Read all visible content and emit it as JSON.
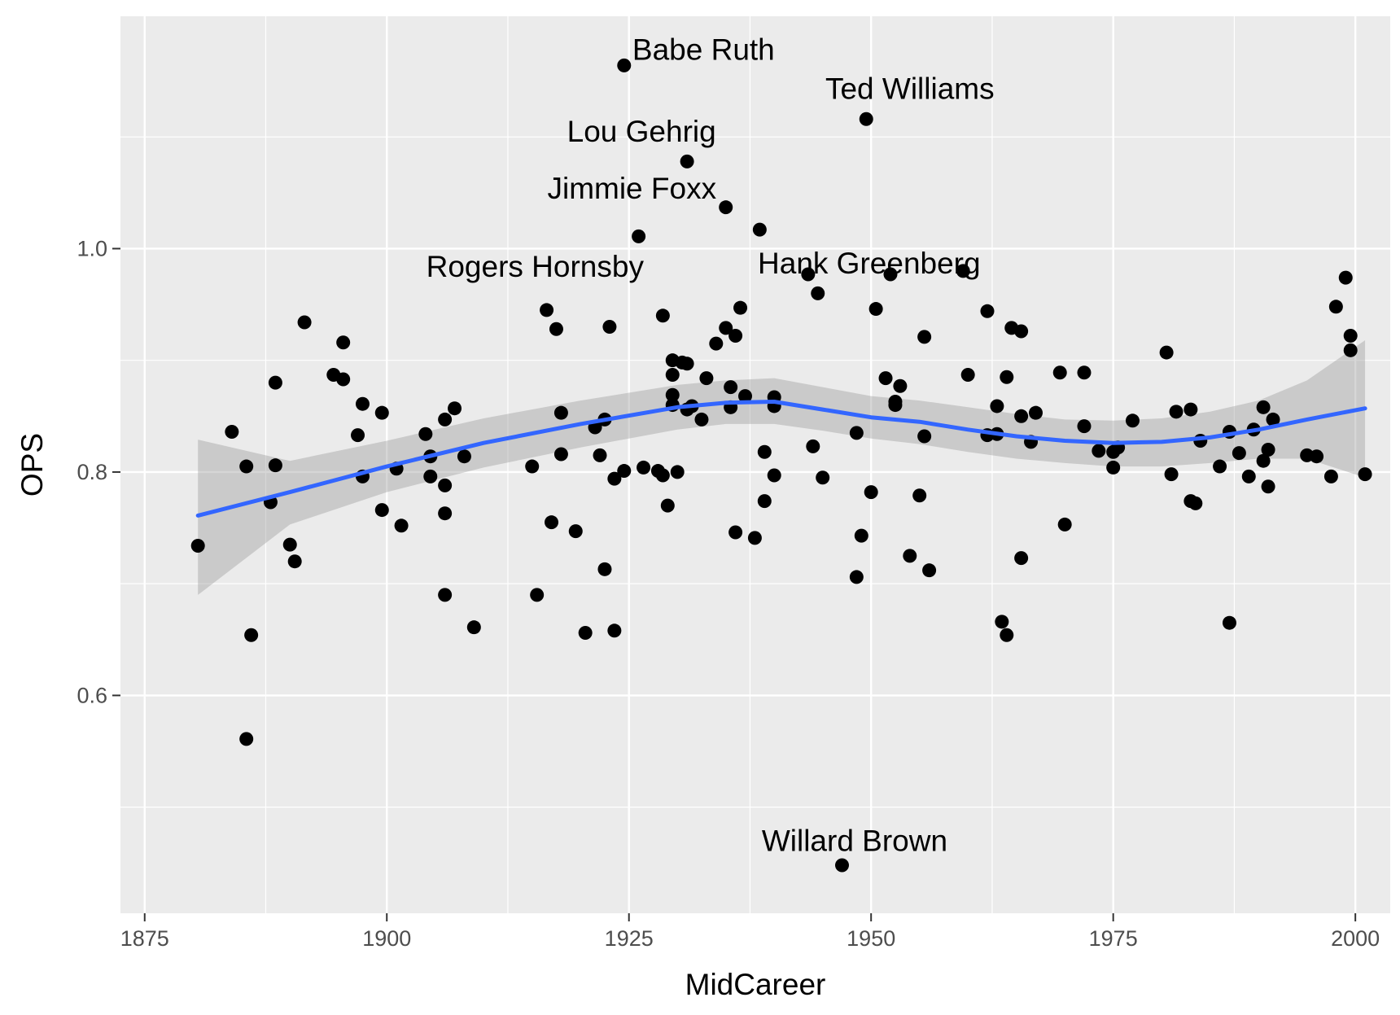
{
  "chart_data": {
    "type": "scatter",
    "title": "",
    "xlabel": "MidCareer",
    "ylabel": "OPS",
    "xlim": [
      1872.5,
      2003.6
    ],
    "ylim": [
      0.405,
      1.208
    ],
    "x_ticks": [
      1875,
      1900,
      1925,
      1950,
      1975,
      2000
    ],
    "y_ticks": [
      0.6,
      0.8,
      1.0
    ],
    "grid": true,
    "legend": "none",
    "colors": {
      "panel": "#ebebeb",
      "grid_major": "#ffffff",
      "point": "#000000",
      "smooth_line": "#3366ff",
      "ribbon": "#999999"
    },
    "points": [
      {
        "x": 1880.5,
        "y": 0.734
      },
      {
        "x": 1884.0,
        "y": 0.836
      },
      {
        "x": 1885.5,
        "y": 0.805
      },
      {
        "x": 1885.5,
        "y": 0.561
      },
      {
        "x": 1886.0,
        "y": 0.654
      },
      {
        "x": 1888.0,
        "y": 0.773
      },
      {
        "x": 1888.5,
        "y": 0.806
      },
      {
        "x": 1888.5,
        "y": 0.88
      },
      {
        "x": 1890.0,
        "y": 0.735
      },
      {
        "x": 1890.5,
        "y": 0.72
      },
      {
        "x": 1891.5,
        "y": 0.934
      },
      {
        "x": 1894.5,
        "y": 0.887
      },
      {
        "x": 1895.5,
        "y": 0.916
      },
      {
        "x": 1895.5,
        "y": 0.883
      },
      {
        "x": 1897.0,
        "y": 0.833
      },
      {
        "x": 1897.5,
        "y": 0.861
      },
      {
        "x": 1897.5,
        "y": 0.796
      },
      {
        "x": 1899.5,
        "y": 0.853
      },
      {
        "x": 1899.5,
        "y": 0.766
      },
      {
        "x": 1901.0,
        "y": 0.803
      },
      {
        "x": 1901.5,
        "y": 0.752
      },
      {
        "x": 1904.0,
        "y": 0.834
      },
      {
        "x": 1904.5,
        "y": 0.814
      },
      {
        "x": 1904.5,
        "y": 0.796
      },
      {
        "x": 1906.0,
        "y": 0.847
      },
      {
        "x": 1906.0,
        "y": 0.788
      },
      {
        "x": 1906.0,
        "y": 0.763
      },
      {
        "x": 1906.0,
        "y": 0.69
      },
      {
        "x": 1907.0,
        "y": 0.857
      },
      {
        "x": 1908.0,
        "y": 0.814
      },
      {
        "x": 1909.0,
        "y": 0.661
      },
      {
        "x": 1915.0,
        "y": 0.805
      },
      {
        "x": 1915.5,
        "y": 0.69
      },
      {
        "x": 1916.5,
        "y": 0.945
      },
      {
        "x": 1917.0,
        "y": 0.755
      },
      {
        "x": 1917.5,
        "y": 0.928
      },
      {
        "x": 1918.0,
        "y": 0.853
      },
      {
        "x": 1918.0,
        "y": 0.816
      },
      {
        "x": 1919.5,
        "y": 0.747
      },
      {
        "x": 1920.5,
        "y": 0.656
      },
      {
        "x": 1921.5,
        "y": 0.84
      },
      {
        "x": 1922.0,
        "y": 0.815
      },
      {
        "x": 1922.5,
        "y": 0.847
      },
      {
        "x": 1922.5,
        "y": 0.713
      },
      {
        "x": 1923.0,
        "y": 0.93
      },
      {
        "x": 1923.5,
        "y": 0.794
      },
      {
        "x": 1923.5,
        "y": 0.658
      },
      {
        "x": 1924.5,
        "y": 0.801
      },
      {
        "x": 1924.5,
        "y": 1.164
      },
      {
        "x": 1926.0,
        "y": 1.011
      },
      {
        "x": 1926.5,
        "y": 0.804
      },
      {
        "x": 1928.0,
        "y": 0.801
      },
      {
        "x": 1928.5,
        "y": 0.797
      },
      {
        "x": 1928.5,
        "y": 0.94
      },
      {
        "x": 1929.0,
        "y": 0.77
      },
      {
        "x": 1929.5,
        "y": 0.9
      },
      {
        "x": 1929.5,
        "y": 0.887
      },
      {
        "x": 1929.5,
        "y": 0.869
      },
      {
        "x": 1929.5,
        "y": 0.86
      },
      {
        "x": 1930.0,
        "y": 0.8
      },
      {
        "x": 1930.5,
        "y": 0.898
      },
      {
        "x": 1931.0,
        "y": 0.897
      },
      {
        "x": 1931.0,
        "y": 0.856
      },
      {
        "x": 1931.0,
        "y": 1.078
      },
      {
        "x": 1931.5,
        "y": 0.859
      },
      {
        "x": 1932.5,
        "y": 0.847
      },
      {
        "x": 1933.0,
        "y": 0.884
      },
      {
        "x": 1934.0,
        "y": 0.915
      },
      {
        "x": 1935.0,
        "y": 0.929
      },
      {
        "x": 1935.0,
        "y": 1.037
      },
      {
        "x": 1935.5,
        "y": 0.876
      },
      {
        "x": 1935.5,
        "y": 0.858
      },
      {
        "x": 1936.0,
        "y": 0.922
      },
      {
        "x": 1936.0,
        "y": 0.746
      },
      {
        "x": 1936.5,
        "y": 0.947
      },
      {
        "x": 1937.0,
        "y": 0.868
      },
      {
        "x": 1938.0,
        "y": 0.741
      },
      {
        "x": 1938.5,
        "y": 1.017
      },
      {
        "x": 1939.0,
        "y": 0.818
      },
      {
        "x": 1939.0,
        "y": 0.774
      },
      {
        "x": 1940.0,
        "y": 0.867
      },
      {
        "x": 1940.0,
        "y": 0.859
      },
      {
        "x": 1940.0,
        "y": 0.797
      },
      {
        "x": 1943.5,
        "y": 0.977
      },
      {
        "x": 1944.0,
        "y": 0.823
      },
      {
        "x": 1944.5,
        "y": 0.96
      },
      {
        "x": 1945.0,
        "y": 0.795
      },
      {
        "x": 1947.0,
        "y": 0.448
      },
      {
        "x": 1948.5,
        "y": 0.835
      },
      {
        "x": 1948.5,
        "y": 0.706
      },
      {
        "x": 1949.0,
        "y": 0.743
      },
      {
        "x": 1949.5,
        "y": 1.116
      },
      {
        "x": 1950.0,
        "y": 0.782
      },
      {
        "x": 1950.5,
        "y": 0.946
      },
      {
        "x": 1951.5,
        "y": 0.884
      },
      {
        "x": 1952.0,
        "y": 0.977
      },
      {
        "x": 1952.5,
        "y": 0.863
      },
      {
        "x": 1952.5,
        "y": 0.86
      },
      {
        "x": 1953.0,
        "y": 0.877
      },
      {
        "x": 1954.0,
        "y": 0.725
      },
      {
        "x": 1955.0,
        "y": 0.779
      },
      {
        "x": 1955.5,
        "y": 0.921
      },
      {
        "x": 1955.5,
        "y": 0.832
      },
      {
        "x": 1956.0,
        "y": 0.712
      },
      {
        "x": 1959.5,
        "y": 0.98
      },
      {
        "x": 1960.0,
        "y": 0.887
      },
      {
        "x": 1962.0,
        "y": 0.944
      },
      {
        "x": 1962.0,
        "y": 0.833
      },
      {
        "x": 1963.0,
        "y": 0.859
      },
      {
        "x": 1963.0,
        "y": 0.834
      },
      {
        "x": 1963.5,
        "y": 0.666
      },
      {
        "x": 1964.0,
        "y": 0.885
      },
      {
        "x": 1964.0,
        "y": 0.654
      },
      {
        "x": 1964.5,
        "y": 0.929
      },
      {
        "x": 1965.5,
        "y": 0.926
      },
      {
        "x": 1965.5,
        "y": 0.85
      },
      {
        "x": 1965.5,
        "y": 0.723
      },
      {
        "x": 1966.5,
        "y": 0.827
      },
      {
        "x": 1967.0,
        "y": 0.853
      },
      {
        "x": 1969.5,
        "y": 0.889
      },
      {
        "x": 1970.0,
        "y": 0.753
      },
      {
        "x": 1972.0,
        "y": 0.889
      },
      {
        "x": 1972.0,
        "y": 0.841
      },
      {
        "x": 1973.5,
        "y": 0.819
      },
      {
        "x": 1975.0,
        "y": 0.818
      },
      {
        "x": 1975.0,
        "y": 0.804
      },
      {
        "x": 1975.5,
        "y": 0.822
      },
      {
        "x": 1977.0,
        "y": 0.846
      },
      {
        "x": 1980.5,
        "y": 0.907
      },
      {
        "x": 1981.0,
        "y": 0.798
      },
      {
        "x": 1981.5,
        "y": 0.854
      },
      {
        "x": 1983.0,
        "y": 0.856
      },
      {
        "x": 1983.0,
        "y": 0.774
      },
      {
        "x": 1983.5,
        "y": 0.772
      },
      {
        "x": 1984.0,
        "y": 0.828
      },
      {
        "x": 1986.0,
        "y": 0.805
      },
      {
        "x": 1987.0,
        "y": 0.836
      },
      {
        "x": 1987.0,
        "y": 0.665
      },
      {
        "x": 1988.0,
        "y": 0.817
      },
      {
        "x": 1989.0,
        "y": 0.796
      },
      {
        "x": 1989.5,
        "y": 0.838
      },
      {
        "x": 1990.5,
        "y": 0.858
      },
      {
        "x": 1990.5,
        "y": 0.81
      },
      {
        "x": 1991.0,
        "y": 0.82
      },
      {
        "x": 1991.0,
        "y": 0.787
      },
      {
        "x": 1991.5,
        "y": 0.847
      },
      {
        "x": 1995.0,
        "y": 0.815
      },
      {
        "x": 1996.0,
        "y": 0.814
      },
      {
        "x": 1997.5,
        "y": 0.796
      },
      {
        "x": 1998.0,
        "y": 0.948
      },
      {
        "x": 1999.0,
        "y": 0.974
      },
      {
        "x": 1999.5,
        "y": 0.922
      },
      {
        "x": 1999.5,
        "y": 0.909
      },
      {
        "x": 2001.0,
        "y": 0.798
      }
    ],
    "smooth": {
      "x": [
        1880.5,
        1890,
        1900,
        1910,
        1920,
        1930,
        1935,
        1940,
        1945,
        1950,
        1955,
        1960,
        1965,
        1970,
        1975,
        1980,
        1985,
        1990,
        1995,
        2001
      ],
      "y": [
        0.761,
        0.782,
        0.805,
        0.826,
        0.843,
        0.858,
        0.862,
        0.863,
        0.856,
        0.849,
        0.845,
        0.838,
        0.832,
        0.828,
        0.826,
        0.827,
        0.831,
        0.838,
        0.847,
        0.857
      ],
      "lower": [
        0.69,
        0.753,
        0.782,
        0.804,
        0.822,
        0.838,
        0.843,
        0.843,
        0.837,
        0.83,
        0.825,
        0.818,
        0.812,
        0.808,
        0.805,
        0.805,
        0.808,
        0.812,
        0.812,
        0.795
      ],
      "upper": [
        0.829,
        0.81,
        0.828,
        0.848,
        0.864,
        0.878,
        0.882,
        0.884,
        0.876,
        0.868,
        0.864,
        0.858,
        0.852,
        0.847,
        0.846,
        0.848,
        0.854,
        0.864,
        0.882,
        0.918
      ]
    },
    "annotations": [
      {
        "text": "Babe Ruth",
        "x": 1932.7,
        "y": 1.178
      },
      {
        "text": "Ted Williams",
        "x": 1954.0,
        "y": 1.143
      },
      {
        "text": "Lou Gehrig",
        "x": 1926.3,
        "y": 1.105
      },
      {
        "text": "Jimmie Foxx",
        "x": 1925.3,
        "y": 1.054
      },
      {
        "text": "Rogers Hornsby",
        "x": 1915.3,
        "y": 0.984
      },
      {
        "text": "Hank Greenberg",
        "x": 1949.8,
        "y": 0.987
      },
      {
        "text": "Willard Brown",
        "x": 1948.3,
        "y": 0.47
      }
    ]
  }
}
